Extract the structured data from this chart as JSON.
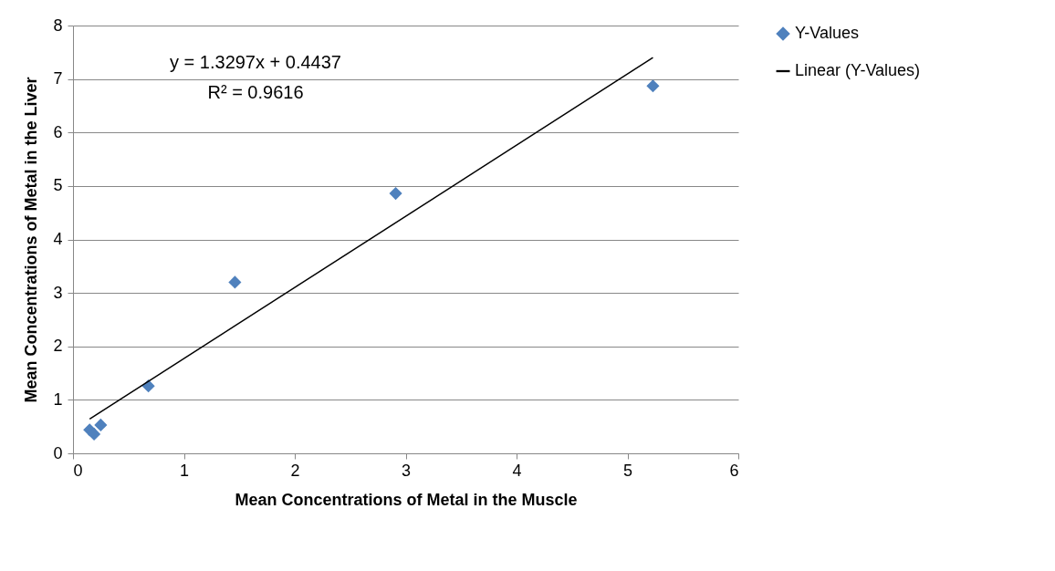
{
  "chart_data": {
    "type": "scatter",
    "xlabel": "Mean Concentrations of Metal in the Muscle",
    "ylabel": "Mean Concentrations of Metal in the Liver",
    "series": [
      {
        "name": "Y-Values",
        "marker": "diamond",
        "color": "#4f81bd",
        "x": [
          0.15,
          0.19,
          0.25,
          0.68,
          1.46,
          2.91,
          5.23
        ],
        "values": [
          0.44,
          0.36,
          0.53,
          1.26,
          3.2,
          4.86,
          6.87
        ]
      },
      {
        "name": "Linear (Y-Values)",
        "type": "line",
        "color": "#000000",
        "x": [
          0.15,
          5.23
        ],
        "values": [
          0.64,
          7.4
        ]
      }
    ],
    "xlim": [
      0,
      6
    ],
    "xticks": [
      0,
      1,
      2,
      3,
      4,
      5,
      6
    ],
    "ylim": [
      0,
      8
    ],
    "yticks": [
      0,
      1,
      2,
      3,
      4,
      5,
      6,
      7,
      8
    ],
    "grid": "y",
    "legend": "right",
    "line_style": "solid",
    "annotations": [
      "y = 1.3297x + 0.4437",
      "R² = 0.9616"
    ]
  }
}
